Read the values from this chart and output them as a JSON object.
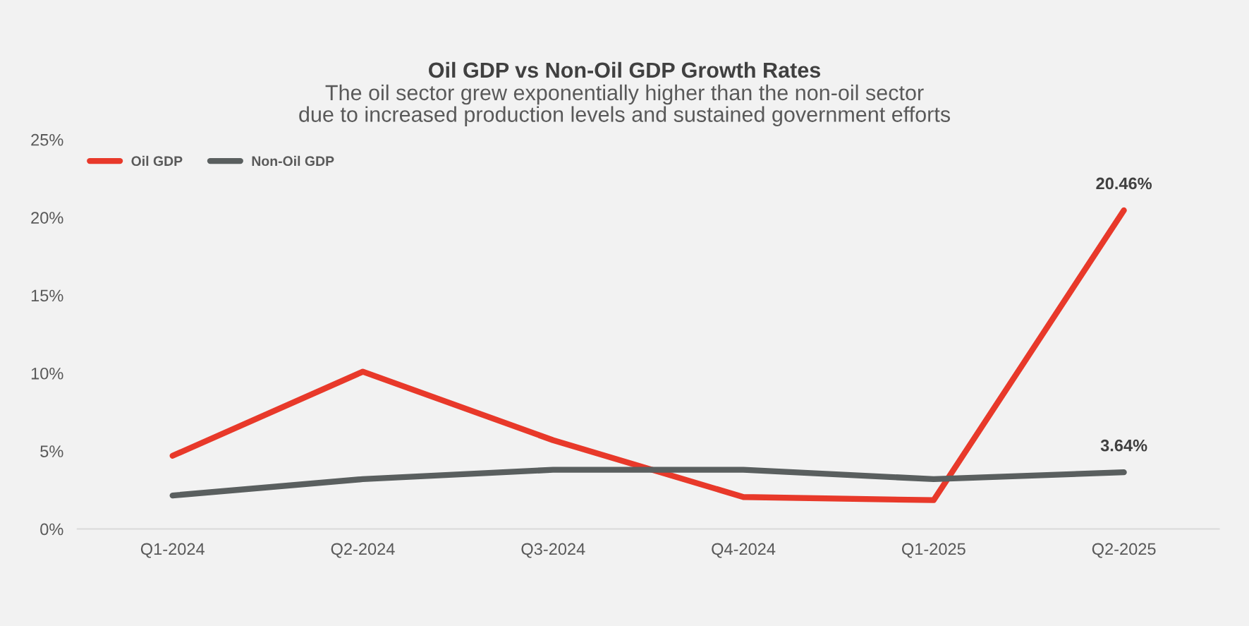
{
  "chart_data": {
    "type": "line",
    "title": "Oil GDP vs Non-Oil GDP Growth Rates",
    "subtitle": "The oil sector grew exponentially higher than the non-oil sector due to increased production levels and sustained government efforts",
    "categories": [
      "Q1-2024",
      "Q2-2024",
      "Q3-2024",
      "Q4-2024",
      "Q1-2025",
      "Q2-2025"
    ],
    "series": [
      {
        "name": "Oil GDP",
        "color": "#e8392a",
        "values": [
          4.7,
          10.1,
          5.7,
          2.05,
          1.85,
          20.46
        ],
        "value_labels": [
          null,
          null,
          null,
          null,
          null,
          "20.46%"
        ]
      },
      {
        "name": "Non-Oil GDP",
        "color": "#5a5f5f",
        "values": [
          2.15,
          3.2,
          3.8,
          3.8,
          3.2,
          3.64
        ],
        "value_labels": [
          null,
          null,
          null,
          null,
          null,
          "3.64%"
        ]
      }
    ],
    "ylim": [
      0,
      25
    ],
    "yticks": [
      {
        "value": 0,
        "label": "0%"
      },
      {
        "value": 5,
        "label": "5%"
      },
      {
        "value": 10,
        "label": "10%"
      },
      {
        "value": 15,
        "label": "15%"
      },
      {
        "value": 20,
        "label": "20%"
      },
      {
        "value": 25,
        "label": "25%"
      }
    ],
    "grid": false,
    "legend": "top left",
    "marker": "none",
    "line_style": "solid"
  }
}
